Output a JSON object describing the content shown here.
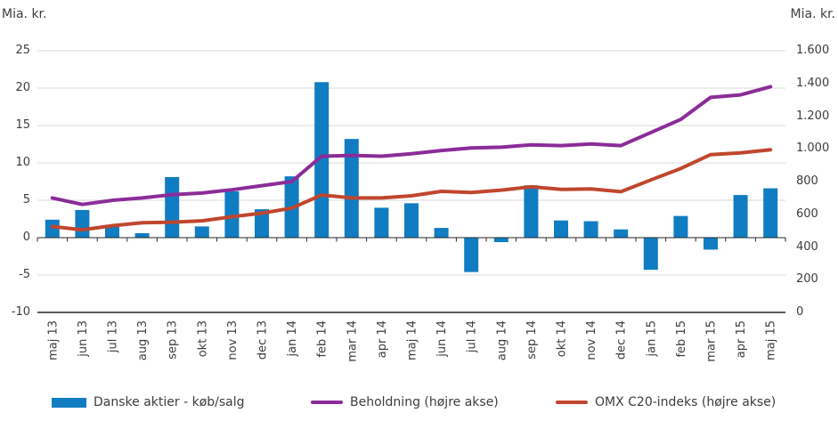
{
  "chart_data": {
    "type": "bar+line combo",
    "categories": [
      "maj 13",
      "jun 13",
      "jul 13",
      "aug 13",
      "sep 13",
      "okt 13",
      "nov 13",
      "dec 13",
      "jan 14",
      "feb 14",
      "mar 14",
      "apr 14",
      "maj 14",
      "jun 14",
      "jul 14",
      "aug 14",
      "sep 14",
      "okt 14",
      "nov 14",
      "dec 14",
      "jan 15",
      "feb 15",
      "mar 15",
      "apr 15",
      "maj 15"
    ],
    "series": [
      {
        "name": "Danske aktier - køb/salg",
        "type": "bar",
        "axis": "left",
        "color": "#107DC2",
        "values": [
          2.4,
          3.7,
          1.7,
          0.6,
          8.1,
          1.5,
          6.2,
          3.8,
          8.2,
          20.8,
          13.2,
          4.0,
          4.6,
          1.3,
          -4.6,
          -0.6,
          7.0,
          2.3,
          2.2,
          1.1,
          -4.3,
          2.9,
          -1.6,
          5.7,
          6.6
        ]
      },
      {
        "name": "Beholdning (højre akse)",
        "type": "line",
        "axis": "right",
        "color": "#8B2C99",
        "values": [
          700,
          660,
          685,
          700,
          720,
          730,
          750,
          775,
          800,
          955,
          960,
          955,
          970,
          990,
          1005,
          1010,
          1025,
          1020,
          1030,
          1020,
          1100,
          1180,
          1315,
          1330,
          1380
        ]
      },
      {
        "name": "OMX C20-indeks (højre akse)",
        "type": "line",
        "axis": "right",
        "color": "#C0462D",
        "values": [
          525,
          505,
          530,
          548,
          552,
          560,
          585,
          607,
          638,
          718,
          700,
          700,
          713,
          740,
          733,
          748,
          768,
          752,
          755,
          738,
          810,
          880,
          965,
          975,
          995
        ]
      }
    ],
    "left_axis": {
      "title": "Mia. kr.",
      "min": -10,
      "max": 25,
      "step": 5,
      "tick_labels": [
        "25",
        "20",
        "15",
        "10",
        "5",
        "0",
        "-5",
        "-10"
      ]
    },
    "right_axis": {
      "title": "Mia. kr.",
      "min": 0,
      "max": 1600,
      "step": 200,
      "tick_labels": [
        "1.600",
        "1.400",
        "1.200",
        "1.000",
        "800",
        "600",
        "400",
        "200",
        "0"
      ]
    },
    "grid": "horizontal",
    "legend_position": "bottom",
    "colors": {
      "grid": "#D9D9D9",
      "axis": "#262626",
      "text": "#3d3d3d",
      "background": "#ffffff"
    }
  }
}
